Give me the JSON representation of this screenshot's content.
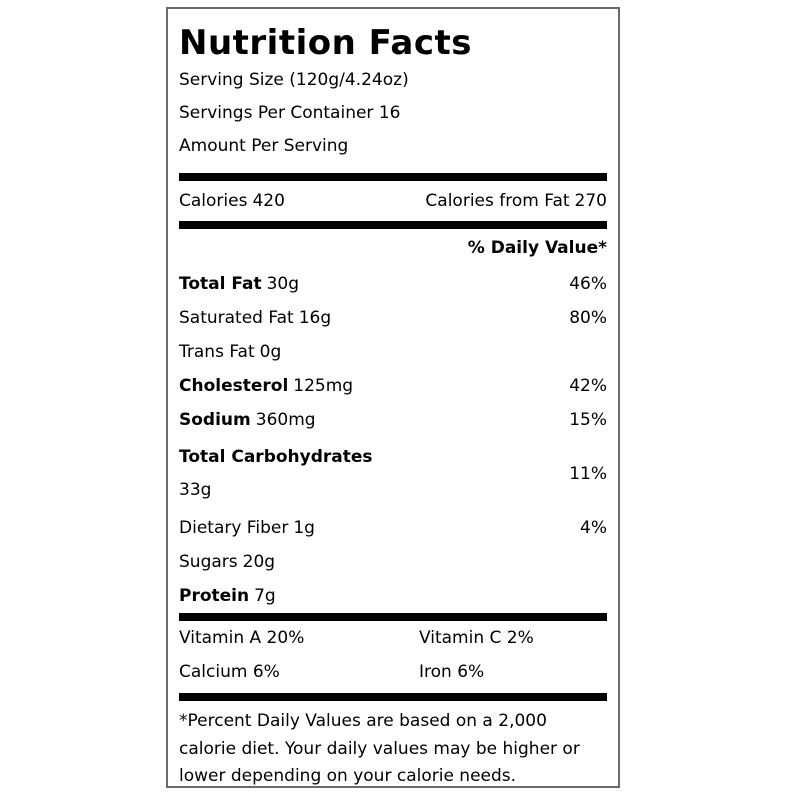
{
  "label": {
    "title": "Nutrition Facts",
    "serving_size": "Serving Size (120g/4.24oz)",
    "servings_per_container": "Servings Per Container 16",
    "amount_per_serving": "Amount Per Serving",
    "calories": {
      "label": "Calories",
      "value": "420"
    },
    "calories_from_fat": {
      "label": "Calories from Fat",
      "value": "270"
    },
    "daily_value_header": "% Daily Value*",
    "nutrients": [
      {
        "name": "Total Fat",
        "amount": "30g",
        "dv": "46%"
      },
      {
        "name": "Saturated Fat",
        "amount": "16g",
        "dv": "80%"
      },
      {
        "name": "Trans Fat",
        "amount": "0g",
        "dv": ""
      },
      {
        "name": "Cholesterol",
        "amount": "125mg",
        "dv": "42%"
      },
      {
        "name": "Sodium",
        "amount": "360mg",
        "dv": "15%"
      },
      {
        "name": "Total Carbohydrates",
        "amount": "33g",
        "dv": "11%"
      },
      {
        "name": "Dietary Fiber",
        "amount": "1g",
        "dv": "4%"
      },
      {
        "name": "Sugars",
        "amount": "20g",
        "dv": ""
      },
      {
        "name": "Protein",
        "amount": "7g",
        "dv": ""
      }
    ],
    "vitamins": [
      {
        "label": "Vitamin A 20%"
      },
      {
        "label": "Vitamin C 2%"
      },
      {
        "label": "Calcium 6%"
      },
      {
        "label": "Iron 6%"
      }
    ],
    "footnote": "*Percent Daily Values are based on a 2,000 calorie diet. Your daily values may be higher or lower depending on your calorie needs.",
    "colors": {
      "text": "#000000",
      "rule": "#000000",
      "border": "#6b6b6b"
    }
  }
}
